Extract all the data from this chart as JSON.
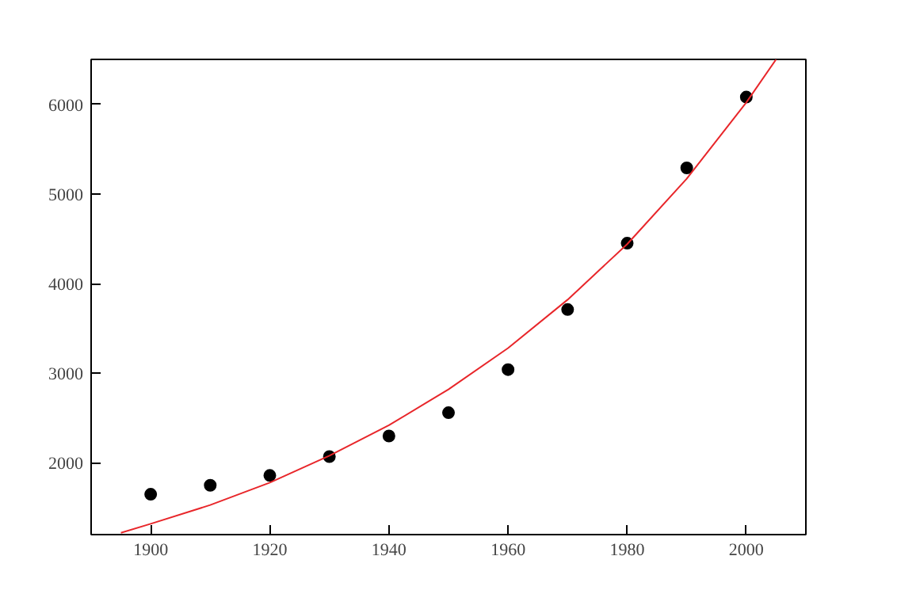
{
  "chart_data": {
    "type": "scatter",
    "xlim": [
      1890,
      2010
    ],
    "ylim": [
      1200,
      6500
    ],
    "xticks": [
      1900,
      1920,
      1940,
      1960,
      1980,
      2000
    ],
    "yticks": [
      2000,
      3000,
      4000,
      5000,
      6000
    ],
    "grid": false,
    "series": [
      {
        "marker": "circle",
        "color": "#000000",
        "x": [
          1900,
          1910,
          1920,
          1930,
          1940,
          1950,
          1960,
          1970,
          1980,
          1990,
          2000
        ],
        "values": [
          1650,
          1750,
          1860,
          2070,
          2300,
          2560,
          3040,
          3710,
          4450,
          5290,
          6080
        ]
      },
      {
        "type": "line",
        "marker": "none",
        "color": "#e8262a",
        "x": [
          1895,
          1900,
          1910,
          1920,
          1930,
          1940,
          1950,
          1960,
          1970,
          1980,
          1990,
          2000,
          2005
        ],
        "values": [
          1220,
          1320,
          1530,
          1780,
          2080,
          2420,
          2820,
          3280,
          3820,
          4440,
          5170,
          6020,
          6500
        ]
      }
    ]
  }
}
